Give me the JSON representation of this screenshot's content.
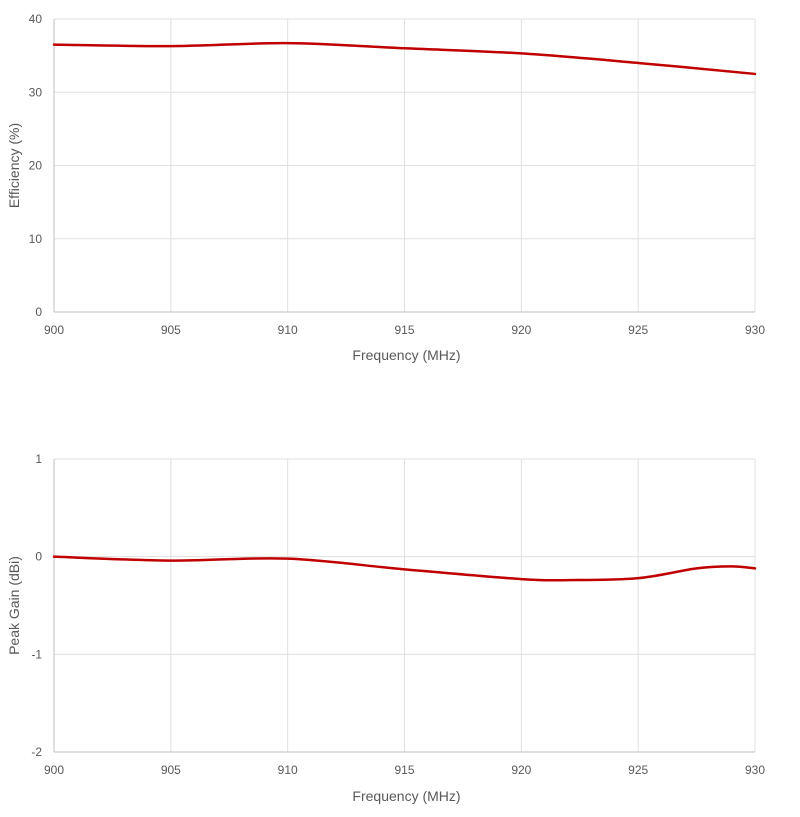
{
  "chart_data": [
    {
      "type": "line",
      "title": "",
      "xlabel": "Frequency (MHz)",
      "ylabel": "Efficiency (%)",
      "xlim": [
        900,
        930
      ],
      "ylim": [
        0,
        40
      ],
      "xticks": [
        900,
        905,
        910,
        915,
        920,
        925,
        930
      ],
      "yticks": [
        0,
        10,
        20,
        30,
        40
      ],
      "grid": true,
      "legend": "none",
      "series": [
        {
          "color": "#c00000",
          "x": [
            900,
            905,
            910,
            915,
            920,
            925,
            930
          ],
          "y": [
            36.5,
            36.3,
            36.7,
            36.0,
            35.3,
            34.0,
            32.5
          ]
        }
      ]
    },
    {
      "type": "line",
      "title": "",
      "xlabel": "Frequency (MHz)",
      "ylabel": "Peak Gain (dBi)",
      "xlim": [
        900,
        930
      ],
      "ylim": [
        -2,
        1
      ],
      "xticks": [
        900,
        905,
        910,
        915,
        920,
        925,
        930
      ],
      "yticks": [
        -2,
        -1,
        0,
        1
      ],
      "grid": true,
      "legend": "none",
      "series": [
        {
          "color": "#c00000",
          "x": [
            900,
            905,
            910,
            915,
            920,
            922,
            925,
            927.5,
            929,
            930
          ],
          "y": [
            0.0,
            -0.04,
            -0.02,
            -0.13,
            -0.23,
            -0.24,
            -0.22,
            -0.12,
            -0.1,
            -0.12
          ]
        }
      ]
    }
  ]
}
